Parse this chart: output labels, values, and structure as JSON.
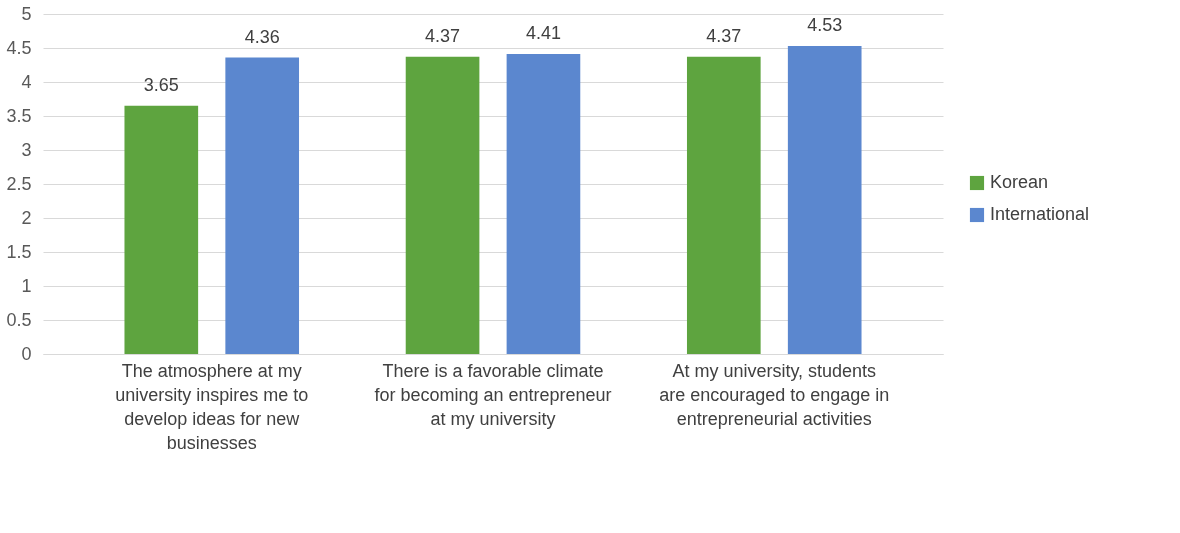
{
  "chart_data": {
    "type": "bar",
    "categories": [
      "The atmosphere at my university inspires me to develop ideas for new businesses",
      "There is a favorable climate for becoming an entrepreneur at my university",
      "At my university, students are encouraged to engage in entrepreneurial activities"
    ],
    "series": [
      {
        "name": "Korean",
        "color": "#5ea43f",
        "values": [
          3.65,
          4.37,
          4.37
        ]
      },
      {
        "name": "International",
        "color": "#5b87cf",
        "values": [
          4.36,
          4.41,
          4.53
        ]
      }
    ],
    "ylim": [
      0,
      5
    ],
    "yticks": [
      0,
      0.5,
      1,
      1.5,
      2,
      2.5,
      3,
      3.5,
      4,
      4.5,
      5
    ],
    "grid": "y",
    "legend": "right",
    "data_labels": true
  }
}
